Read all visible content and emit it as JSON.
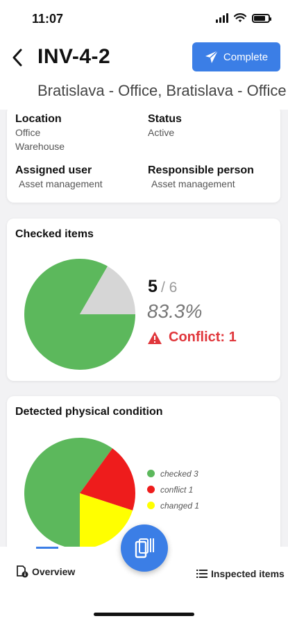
{
  "status_bar": {
    "time": "11:07"
  },
  "header": {
    "title": "INV-4-2",
    "complete_label": "Complete",
    "subtitle": "Bratislava - Office, Bratislava - Office"
  },
  "info": {
    "location_label": "Location",
    "location_values": [
      "Office",
      "Warehouse"
    ],
    "status_label": "Status",
    "status_value": "Active",
    "assigned_label": "Assigned user",
    "assigned_value": "Asset management",
    "responsible_label": "Responsible person",
    "responsible_value": "Asset management"
  },
  "checked": {
    "title": "Checked items",
    "count": "5",
    "total": "/ 6",
    "percent": "83.3%",
    "conflict": "Conflict: 1",
    "pie": [
      {
        "label": "checked",
        "value": 5,
        "color": "#5cb85c"
      },
      {
        "label": "unchecked",
        "value": 1,
        "color": "#d6d6d6"
      }
    ]
  },
  "condition": {
    "title": "Detected physical condition",
    "legend": [
      {
        "label": "checked 3",
        "value": 3,
        "color": "#5cb85c"
      },
      {
        "label": "conflict 1",
        "value": 1,
        "color": "#ee1c1c"
      },
      {
        "label": "changed 1",
        "value": 1,
        "color": "#ffff00"
      }
    ]
  },
  "nav": {
    "overview_label": "Overview",
    "inspected_label": "Inspected items"
  },
  "icons": {
    "back": "chevron-left-icon",
    "complete": "paper-plane-icon",
    "conflict": "warning-icon",
    "overview": "document-info-icon",
    "inspected": "list-icon",
    "fab": "scanner-icon"
  }
}
